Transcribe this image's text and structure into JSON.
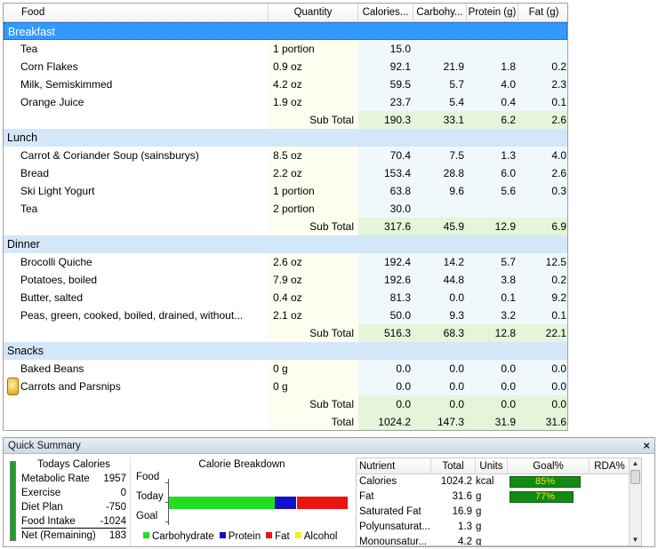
{
  "diary": {
    "columns": {
      "food": "Food",
      "quantity": "Quantity",
      "calories": "Calories...",
      "carbohydrate": "Carbohy...",
      "protein": "Protein (g)",
      "fat": "Fat (g)"
    },
    "meals": [
      {
        "name": "Breakfast",
        "selected": true,
        "items": [
          {
            "food": "Tea",
            "qty": "1 portion",
            "cal": "15.0",
            "carb": "",
            "prot": "",
            "fat": ""
          },
          {
            "food": "Corn Flakes",
            "qty": "0.9 oz",
            "cal": "92.1",
            "carb": "21.9",
            "prot": "1.8",
            "fat": "0.2"
          },
          {
            "food": "Milk, Semiskimmed",
            "qty": "4.2 oz",
            "cal": "59.5",
            "carb": "5.7",
            "prot": "4.0",
            "fat": "2.3"
          },
          {
            "food": "Orange Juice",
            "qty": "1.9 oz",
            "cal": "23.7",
            "carb": "5.4",
            "prot": "0.4",
            "fat": "0.1"
          }
        ],
        "subtotal": {
          "label": "Sub Total",
          "cal": "190.3",
          "carb": "33.1",
          "prot": "6.2",
          "fat": "2.6"
        }
      },
      {
        "name": "Lunch",
        "selected": false,
        "items": [
          {
            "food": "Carrot & Coriander Soup (sainsburys)",
            "qty": "8.5 oz",
            "cal": "70.4",
            "carb": "7.5",
            "prot": "1.3",
            "fat": "4.0"
          },
          {
            "food": "Bread",
            "qty": "2.2 oz",
            "cal": "153.4",
            "carb": "28.8",
            "prot": "6.0",
            "fat": "2.6"
          },
          {
            "food": "Ski Light Yogurt",
            "qty": "1 portion",
            "cal": "63.8",
            "carb": "9.6",
            "prot": "5.6",
            "fat": "0.3"
          },
          {
            "food": "Tea",
            "qty": "2 portion",
            "cal": "30.0",
            "carb": "",
            "prot": "",
            "fat": ""
          }
        ],
        "subtotal": {
          "label": "Sub Total",
          "cal": "317.6",
          "carb": "45.9",
          "prot": "12.9",
          "fat": "6.9"
        }
      },
      {
        "name": "Dinner",
        "selected": false,
        "items": [
          {
            "food": "Brocolli Quiche",
            "qty": "2.6 oz",
            "cal": "192.4",
            "carb": "14.2",
            "prot": "5.7",
            "fat": "12.5"
          },
          {
            "food": "Potatoes, boiled",
            "qty": "7.9 oz",
            "cal": "192.6",
            "carb": "44.8",
            "prot": "3.8",
            "fat": "0.2"
          },
          {
            "food": "Butter, salted",
            "qty": "0.4 oz",
            "cal": "81.3",
            "carb": "0.0",
            "prot": "0.1",
            "fat": "9.2"
          },
          {
            "food": "Peas,  green,  cooked,  boiled,  drained,  without...",
            "qty": "2.1 oz",
            "cal": "50.0",
            "carb": "9.3",
            "prot": "3.2",
            "fat": "0.1"
          }
        ],
        "subtotal": {
          "label": "Sub Total",
          "cal": "516.3",
          "carb": "68.3",
          "prot": "12.8",
          "fat": "22.1"
        }
      },
      {
        "name": "Snacks",
        "selected": false,
        "items": [
          {
            "food": "Baked Beans",
            "qty": "0 g",
            "cal": "0.0",
            "carb": "0.0",
            "prot": "0.0",
            "fat": "0.0"
          },
          {
            "food": "Carrots and Parsnips",
            "qty": "0 g",
            "cal": "0.0",
            "carb": "0.0",
            "prot": "0.0",
            "fat": "0.0",
            "icon": "locked-food-icon"
          }
        ],
        "subtotal": {
          "label": "Sub Total",
          "cal": "0.0",
          "carb": "0.0",
          "prot": "0.0",
          "fat": "0.0"
        }
      }
    ],
    "total": {
      "label": "Total",
      "cal": "1024.2",
      "carb": "147.3",
      "prot": "31.9",
      "fat": "31.6"
    }
  },
  "summary": {
    "title": "Quick Summary",
    "close_icon": "×",
    "todays_calories": {
      "title": "Todays Calories",
      "bar_level": 1.0,
      "bar_color": "#1f9d2a",
      "lines": [
        {
          "label": "Metabolic Rate",
          "value": "1957"
        },
        {
          "label": "Exercise",
          "value": "0"
        },
        {
          "label": "Diet Plan",
          "value": "-750"
        },
        {
          "label": "Food Intake",
          "value": "-1024"
        },
        {
          "label": "Net (Remaining)",
          "value": "183"
        }
      ]
    },
    "breakdown": {
      "title": "Calorie Breakdown",
      "rows": [
        "Food",
        "Today",
        "Goal"
      ],
      "today_segments": [
        {
          "name": "Carbohydrate",
          "fraction": 0.58,
          "color": "#22dd22"
        },
        {
          "name": "Protein",
          "fraction": 0.12,
          "color": "#1111cc"
        },
        {
          "name": "Fat",
          "fraction": 0.28,
          "color": "#ee1111"
        },
        {
          "name": "Alcohol",
          "fraction": 0.0,
          "color": "#eeee22"
        }
      ],
      "legend": [
        {
          "name": "Carbohydrate",
          "color": "#22dd22"
        },
        {
          "name": "Protein",
          "color": "#1111cc"
        },
        {
          "name": "Fat",
          "color": "#ee1111"
        },
        {
          "name": "Alcohol",
          "color": "#eeee22"
        }
      ]
    },
    "nutrients": {
      "headers": [
        "Nutrient",
        "Total",
        "Units",
        "Goal%",
        "RDA%"
      ],
      "rows": [
        {
          "name": "Calories",
          "total": "1024.2",
          "unit": "kcal",
          "goal_pct": "85%",
          "goal_level": 0.85
        },
        {
          "name": "Fat",
          "total": "31.6",
          "unit": "g",
          "goal_pct": "77%",
          "goal_level": 0.77
        },
        {
          "name": "Saturated Fat",
          "total": "16.9",
          "unit": "g",
          "goal_pct": "",
          "goal_level": 0
        },
        {
          "name": "Polyunsaturat...",
          "total": "1.3",
          "unit": "g",
          "goal_pct": "",
          "goal_level": 0
        },
        {
          "name": "Monounsatur...",
          "total": "4.2",
          "unit": "g",
          "goal_pct": "",
          "goal_level": 0
        }
      ]
    }
  }
}
